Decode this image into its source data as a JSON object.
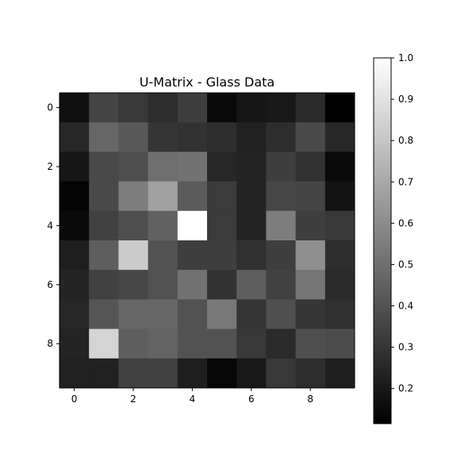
{
  "chart_data": {
    "type": "heatmap",
    "title": "U-Matrix - Glass Data",
    "xlabel": "",
    "ylabel": "",
    "colormap": "gray",
    "x_ticks": [
      "0",
      "2",
      "4",
      "6",
      "8"
    ],
    "y_ticks": [
      "0",
      "2",
      "4",
      "6",
      "8"
    ],
    "colorbar": {
      "vmin": 0.115,
      "vmax": 1.0,
      "ticks": [
        "0.2",
        "0.3",
        "0.4",
        "0.5",
        "0.6",
        "0.7",
        "0.8",
        "0.9",
        "1.0"
      ]
    },
    "grid": false,
    "matrix": [
      [
        0.17,
        0.35,
        0.31,
        0.27,
        0.33,
        0.15,
        0.19,
        0.2,
        0.26,
        0.12
      ],
      [
        0.25,
        0.47,
        0.42,
        0.3,
        0.29,
        0.27,
        0.23,
        0.27,
        0.37,
        0.25
      ],
      [
        0.19,
        0.37,
        0.39,
        0.5,
        0.51,
        0.25,
        0.24,
        0.33,
        0.29,
        0.15
      ],
      [
        0.13,
        0.37,
        0.55,
        0.67,
        0.43,
        0.32,
        0.24,
        0.36,
        0.35,
        0.18
      ],
      [
        0.15,
        0.34,
        0.39,
        0.45,
        1.0,
        0.32,
        0.24,
        0.55,
        0.33,
        0.31
      ],
      [
        0.22,
        0.44,
        0.82,
        0.4,
        0.33,
        0.33,
        0.28,
        0.33,
        0.61,
        0.27
      ],
      [
        0.24,
        0.34,
        0.36,
        0.4,
        0.51,
        0.29,
        0.44,
        0.34,
        0.52,
        0.26
      ],
      [
        0.25,
        0.41,
        0.47,
        0.47,
        0.4,
        0.53,
        0.3,
        0.39,
        0.3,
        0.28
      ],
      [
        0.24,
        0.85,
        0.44,
        0.46,
        0.4,
        0.4,
        0.31,
        0.26,
        0.39,
        0.38
      ],
      [
        0.23,
        0.23,
        0.34,
        0.34,
        0.22,
        0.14,
        0.2,
        0.31,
        0.27,
        0.22
      ]
    ]
  }
}
